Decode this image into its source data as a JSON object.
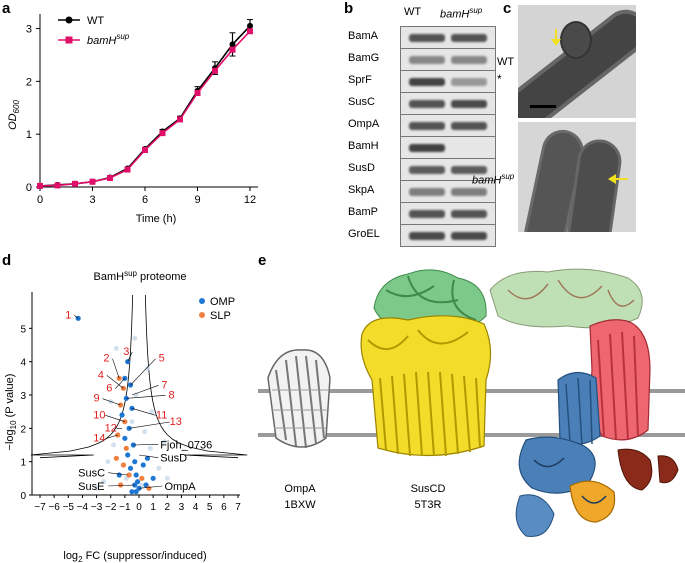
{
  "panel_labels": {
    "a": "a",
    "b": "b",
    "c": "c",
    "d": "d",
    "e": "e"
  },
  "colors": {
    "wt": "#000000",
    "sup": "#e0106a",
    "omp": "#1f77d4",
    "slp": "#f08040",
    "annot_red": "#e02020",
    "susc": "#f0d020",
    "susd": "#60c070",
    "ompa": "#888888"
  },
  "growth": {
    "legend": [
      "WT",
      "bamH"
    ],
    "legend_sup": "sup",
    "ylabel_main": "OD",
    "ylabel_sub": "600",
    "xlabel": "Time (h)",
    "xticks": [
      "0",
      "3",
      "6",
      "9",
      "12"
    ],
    "yticks": [
      "0",
      "1",
      "2",
      "3"
    ]
  },
  "chart_data": [
    {
      "type": "line",
      "xlabel": "Time (h)",
      "ylabel": "OD600",
      "xlim": [
        0,
        13
      ],
      "ylim": [
        0,
        3.2
      ],
      "x": [
        0,
        1,
        2,
        3,
        4,
        5,
        6,
        7,
        8,
        9,
        10,
        11,
        12
      ],
      "series": [
        {
          "name": "WT",
          "values": [
            0.02,
            0.04,
            0.06,
            0.1,
            0.18,
            0.35,
            0.72,
            1.05,
            1.3,
            1.82,
            2.25,
            2.7,
            3.05
          ]
        },
        {
          "name": "bamHsup",
          "values": [
            0.02,
            0.03,
            0.06,
            0.1,
            0.17,
            0.33,
            0.7,
            1.02,
            1.28,
            1.78,
            2.2,
            2.6,
            2.95
          ]
        }
      ],
      "yerr": [
        0,
        0,
        0,
        0,
        0,
        0,
        0.03,
        0.04,
        0.04,
        0.08,
        0.12,
        0.22,
        0.12
      ]
    },
    {
      "type": "scatter",
      "title": "BamHsup proteome",
      "xlabel": "log2 FC (suppressor/induced)",
      "ylabel": "-log10 (P value)",
      "xlim": [
        -7,
        7
      ],
      "ylim": [
        0,
        6
      ],
      "series": [
        {
          "name": "OMP",
          "points": [
            [
              -4.3,
              5.3
            ],
            [
              -0.8,
              4.0
            ],
            [
              -1.0,
              3.5
            ],
            [
              -0.6,
              3.3
            ],
            [
              -0.9,
              2.9
            ],
            [
              -0.5,
              2.6
            ],
            [
              -1.2,
              2.4
            ],
            [
              -0.7,
              2.0
            ],
            [
              -1.0,
              1.7
            ],
            [
              -0.4,
              1.5
            ],
            [
              -0.8,
              1.2
            ],
            [
              -0.3,
              1.0
            ],
            [
              -0.6,
              0.8
            ],
            [
              -0.2,
              0.6
            ],
            [
              -0.1,
              0.4
            ],
            [
              -0.3,
              0.3
            ],
            [
              0.0,
              0.2
            ],
            [
              -0.2,
              0.1
            ],
            [
              0.3,
              0.9
            ],
            [
              0.6,
              1.1
            ],
            [
              1.0,
              0.5
            ],
            [
              0.5,
              0.3
            ],
            [
              -1.4,
              0.6
            ],
            [
              -0.5,
              0.1
            ]
          ]
        },
        {
          "name": "SLP",
          "points": [
            [
              -1.4,
              3.5
            ],
            [
              -1.1,
              3.2
            ],
            [
              -1.3,
              2.7
            ],
            [
              -1.0,
              2.2
            ],
            [
              -1.5,
              1.8
            ],
            [
              -0.9,
              1.4
            ],
            [
              -1.6,
              1.1
            ],
            [
              -1.1,
              0.9
            ],
            [
              -0.7,
              0.6
            ],
            [
              -1.3,
              0.3
            ],
            [
              0.2,
              0.5
            ],
            [
              0.7,
              0.2
            ]
          ]
        }
      ],
      "annotations": [
        "1",
        "2",
        "3",
        "4",
        "5",
        "6",
        "7",
        "8",
        "9",
        "10",
        "11",
        "12",
        "13",
        "14",
        "Fjoh_0736",
        "SusD",
        "SusC",
        "SusE",
        "OmpA"
      ]
    }
  ],
  "blot": {
    "headers": [
      "WT",
      "bamH"
    ],
    "header_sup": "sup",
    "rows": [
      {
        "name": "BamA",
        "wt": 0.85,
        "sup": 0.85
      },
      {
        "name": "BamG",
        "wt": 0.55,
        "sup": 0.55
      },
      {
        "name": "SprF",
        "wt": 0.95,
        "sup": 0.45
      },
      {
        "name": "SusC",
        "wt": 0.85,
        "sup": 0.9
      },
      {
        "name": "OmpA",
        "wt": 0.85,
        "sup": 0.85
      },
      {
        "name": "BamH",
        "wt": 0.95,
        "sup": 0.0
      },
      {
        "name": "SusD",
        "wt": 0.8,
        "sup": 0.8
      },
      {
        "name": "SkpA",
        "wt": 0.6,
        "sup": 0.6
      },
      {
        "name": "BamP",
        "wt": 0.85,
        "sup": 0.85
      },
      {
        "name": "GroEL",
        "wt": 0.9,
        "sup": 0.9
      }
    ],
    "star": "*"
  },
  "em": {
    "wt_label": "WT",
    "sup_label": "bamH",
    "sup_sup": "sup"
  },
  "volcano": {
    "title_main": "BamH",
    "title_sup": "sup",
    "title_rest": " proteome",
    "legend": [
      "OMP",
      "SLP"
    ],
    "ylabel_main": "−log",
    "ylabel_sub": "10",
    "ylabel_rest": " (P value)",
    "xlabel_main": "log",
    "xlabel_sub": "2",
    "xlabel_rest": " FC (suppressor/induced)",
    "xticks": [
      "−7",
      "−6",
      "−5",
      "−4",
      "−3",
      "−2",
      "−1",
      "0",
      "1",
      "2",
      "3",
      "4",
      "5",
      "6",
      "7"
    ],
    "yticks": [
      "0",
      "1",
      "2",
      "3",
      "4",
      "5"
    ],
    "numbers": [
      "1",
      "2",
      "3",
      "4",
      "5",
      "6",
      "7",
      "8",
      "9",
      "10",
      "11",
      "12",
      "13",
      "14"
    ],
    "protein_labels": [
      "Fjoh_0736",
      "SusD",
      "SusC",
      "SusE",
      "OmpA"
    ]
  },
  "structures": {
    "ompa_name": "OmpA",
    "ompa_code": "1BXW",
    "suscd_name": "SusCD",
    "suscd_code": "5T3R"
  }
}
